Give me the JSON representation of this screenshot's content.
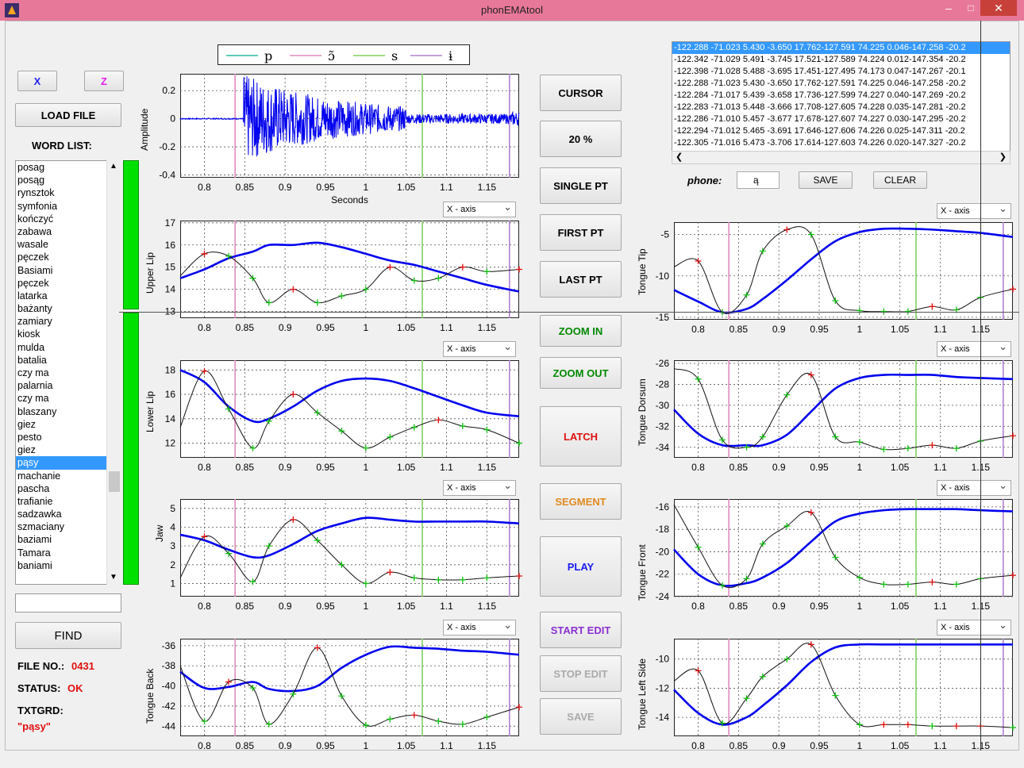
{
  "window": {
    "title": "phonEMAtool",
    "minimize": "–",
    "maximize": "□",
    "close": "✕"
  },
  "left": {
    "x_button": "X",
    "z_button": "Z",
    "load_button": "LOAD FILE",
    "word_list_label": "WORD LIST:",
    "words": [
      "posag",
      "posąg",
      "rynsztok",
      "symfonia",
      "kończyć",
      "zabawa",
      "wasale",
      "pęczek",
      "Basiami",
      "pęczek",
      "latarka",
      "bażanty",
      "zamiary",
      "kiosk",
      "mulda",
      "batalia",
      "czy ma",
      "palarnia",
      "czy ma",
      "blaszany",
      "giez",
      "pesto",
      "giez",
      "pąsy",
      "machanie",
      "pascha",
      "trafianie",
      "sadzawka",
      "szmaciany",
      "baziami",
      "Tamara",
      "baniami"
    ],
    "selected_word": "pąsy",
    "find_value": "",
    "find_button": "FIND",
    "file_no_label": "FILE NO.:",
    "file_no": "0431",
    "status_label": "STATUS:",
    "status": "OK",
    "txtgrd_label": "TXTGRD:",
    "txtgrd": "\"pąsy\""
  },
  "legend": [
    "p",
    "ɔ̃",
    "s",
    "ɨ"
  ],
  "colors": {
    "p": "#2ab8a0",
    "on": "#e08ac0",
    "s": "#80d060",
    "i": "#b080d0",
    "trace": "#0000ee",
    "accent_red": "#e01010",
    "accent_green": "#008800",
    "accent_orange": "#e08a20",
    "accent_blue": "#1a1aee",
    "accent_purple": "#8a30d0"
  },
  "center_buttons": {
    "cursor": "CURSOR",
    "pct": "20 %",
    "single": "SINGLE PT",
    "first": "FIRST PT",
    "last": "LAST PT",
    "zoom_in": "ZOOM IN",
    "zoom_out": "ZOOM OUT",
    "latch": "LATCH",
    "segment": "SEGMENT",
    "play": "PLAY",
    "start_edit": "START EDIT",
    "stop_edit": "STOP EDIT",
    "save": "SAVE"
  },
  "coord_rows": [
    "-122.288 -71.023  5.430  -3.650  17.762-127.591  74.225   0.046-147.258 -20.2",
    "-122.342 -71.029  5.491  -3.745  17.521-127.589  74.224   0.012-147.354 -20.2",
    "-122.398 -71.028  5.488  -3.695  17.451-127.495  74.173   0.047-147.267 -20.1",
    "-122.288 -71.023  5.430  -3.650  17.762-127.591  74.225   0.046-147.258 -20.2",
    "-122.284 -71.017  5.439  -3.658  17.736-127.599  74.227   0.040-147.269 -20.2",
    "-122.283 -71.013  5.448  -3.666  17.708-127.605  74.228   0.035-147.281 -20.2",
    "-122.286 -71.010  5.457  -3.677  17.678-127.607  74.227   0.030-147.295 -20.2",
    "-122.294 -71.012  5.465  -3.691  17.646-127.606  74.226   0.025-147.311 -20.2",
    "-122.305 -71.016  5.473  -3.706  17.614-127.603  74.226   0.020-147.327 -20.2"
  ],
  "phone": {
    "label": "phone:",
    "value": "ą",
    "save": "SAVE",
    "clear": "CLEAR"
  },
  "axis_dropdown": "X - axis",
  "x_ticks": [
    "0.8",
    "0.85",
    "0.9",
    "0.95",
    "1",
    "1.05",
    "1.1",
    "1.15"
  ],
  "x_tick_values": [
    0.8,
    0.85,
    0.9,
    0.95,
    1.0,
    1.05,
    1.1,
    1.15
  ],
  "x_range": [
    0.77,
    1.19
  ],
  "segments": [
    0.838,
    1.07,
    1.178
  ],
  "chart_data": [
    {
      "type": "line",
      "ylabel": "Amplitude",
      "xlabel": "Seconds",
      "ylim": [
        -0.42,
        0.32
      ],
      "yticks": [
        -0.4,
        -0.2,
        0,
        0.2
      ],
      "ytick_labels": [
        "-0.4",
        "-0.2",
        "0",
        "0.2"
      ],
      "waveform": true
    },
    {
      "type": "line",
      "ylabel": "Upper Lip",
      "ylim": [
        12.7,
        17.1
      ],
      "yticks": [
        13,
        14,
        15,
        16,
        17
      ],
      "ytick_labels": [
        "13",
        "14",
        "15",
        "16",
        "17"
      ],
      "x": [
        0.77,
        0.8,
        0.83,
        0.86,
        0.88,
        0.91,
        0.94,
        0.97,
        1.0,
        1.03,
        1.06,
        1.09,
        1.12,
        1.15,
        1.19
      ],
      "blue": [
        14.5,
        14.9,
        15.4,
        15.7,
        16.0,
        16.0,
        16.1,
        15.9,
        15.6,
        15.3,
        15.1,
        14.8,
        14.5,
        14.2,
        13.9
      ],
      "black": [
        14.6,
        15.6,
        15.5,
        14.5,
        13.4,
        14.0,
        13.4,
        13.7,
        14.0,
        15.0,
        14.4,
        14.5,
        15.0,
        14.8,
        14.9
      ]
    },
    {
      "type": "line",
      "ylabel": "Lower Lip",
      "ylim": [
        10.8,
        18.8
      ],
      "yticks": [
        12,
        14,
        16,
        18
      ],
      "ytick_labels": [
        "12",
        "14",
        "16",
        "18"
      ],
      "x": [
        0.77,
        0.8,
        0.83,
        0.86,
        0.88,
        0.91,
        0.94,
        0.97,
        1.0,
        1.03,
        1.06,
        1.09,
        1.12,
        1.15,
        1.19
      ],
      "blue": [
        18.0,
        17.0,
        15.0,
        13.8,
        14.0,
        15.0,
        16.3,
        17.1,
        17.3,
        17.1,
        16.5,
        15.8,
        15.1,
        14.5,
        14.2
      ],
      "black": [
        13.3,
        17.9,
        14.8,
        11.6,
        13.8,
        16.0,
        14.5,
        13.0,
        11.6,
        12.5,
        13.3,
        13.9,
        13.4,
        13.1,
        12.0
      ]
    },
    {
      "type": "line",
      "ylabel": "Jaw",
      "ylim": [
        0.3,
        5.5
      ],
      "yticks": [
        1,
        2,
        3,
        4,
        5
      ],
      "ytick_labels": [
        "1",
        "2",
        "3",
        "4",
        "5"
      ],
      "x": [
        0.77,
        0.8,
        0.83,
        0.86,
        0.88,
        0.91,
        0.94,
        0.97,
        1.0,
        1.03,
        1.06,
        1.09,
        1.12,
        1.15,
        1.19
      ],
      "blue": [
        3.6,
        3.3,
        2.8,
        2.4,
        2.5,
        3.1,
        3.8,
        4.2,
        4.5,
        4.4,
        4.3,
        4.3,
        4.3,
        4.3,
        4.2
      ],
      "black": [
        1.3,
        3.5,
        2.6,
        1.1,
        3.0,
        4.4,
        3.3,
        2.0,
        1.0,
        1.6,
        1.3,
        1.2,
        1.2,
        1.3,
        1.4
      ]
    },
    {
      "type": "line",
      "ylabel": "Tongue Back",
      "ylim": [
        -45,
        -35.3
      ],
      "yticks": [
        -44,
        -42,
        -40,
        -38,
        -36
      ],
      "ytick_labels": [
        "-44",
        "-42",
        "-40",
        "-38",
        "-36"
      ],
      "x": [
        0.77,
        0.8,
        0.83,
        0.86,
        0.88,
        0.91,
        0.94,
        0.97,
        1.0,
        1.03,
        1.06,
        1.09,
        1.12,
        1.15,
        1.19
      ],
      "blue": [
        -38.6,
        -40.2,
        -40.1,
        -39.6,
        -40.3,
        -40.5,
        -40.0,
        -38.2,
        -36.9,
        -36.1,
        -36.2,
        -36.3,
        -36.5,
        -36.6,
        -36.9
      ],
      "black": [
        -38.0,
        -43.5,
        -39.6,
        -40.2,
        -43.8,
        -40.8,
        -36.2,
        -41.0,
        -43.9,
        -43.3,
        -42.9,
        -43.5,
        -43.8,
        -43.1,
        -42.1
      ]
    },
    {
      "type": "line",
      "ylabel": "Tongue Tip",
      "ylim": [
        -15.3,
        -3.5
      ],
      "yticks": [
        -15,
        -10,
        -5
      ],
      "ytick_labels": [
        "-15",
        "-10",
        "-5"
      ],
      "x": [
        0.77,
        0.8,
        0.83,
        0.86,
        0.88,
        0.91,
        0.94,
        0.97,
        1.0,
        1.03,
        1.06,
        1.09,
        1.12,
        1.15,
        1.19
      ],
      "blue": [
        -11.7,
        -13.1,
        -14.4,
        -14.0,
        -12.8,
        -10.5,
        -8.0,
        -5.8,
        -4.7,
        -4.3,
        -4.3,
        -4.4,
        -4.6,
        -4.8,
        -5.3
      ],
      "black": [
        -8.9,
        -8.2,
        -14.4,
        -12.3,
        -7.0,
        -4.4,
        -5.0,
        -13.0,
        -14.2,
        -14.3,
        -14.3,
        -13.7,
        -14.1,
        -12.6,
        -11.6
      ]
    },
    {
      "type": "line",
      "ylabel": "Tongue Dorsum",
      "ylim": [
        -35,
        -25.7
      ],
      "yticks": [
        -34,
        -32,
        -30,
        -28,
        -26
      ],
      "ytick_labels": [
        "-34",
        "-32",
        "-30",
        "-28",
        "-26"
      ],
      "x": [
        0.77,
        0.8,
        0.83,
        0.86,
        0.88,
        0.91,
        0.94,
        0.97,
        1.0,
        1.03,
        1.06,
        1.09,
        1.12,
        1.15,
        1.19
      ],
      "blue": [
        -30.4,
        -32.7,
        -33.8,
        -33.8,
        -33.8,
        -32.8,
        -30.6,
        -28.4,
        -27.4,
        -27.1,
        -27.1,
        -27.1,
        -27.3,
        -27.4,
        -27.5
      ],
      "black": [
        -26.5,
        -27.5,
        -33.3,
        -34.0,
        -33.0,
        -29.0,
        -27.1,
        -33.0,
        -33.5,
        -34.2,
        -34.1,
        -33.8,
        -34.1,
        -33.4,
        -32.9
      ]
    },
    {
      "type": "line",
      "ylabel": "Tongue Front",
      "ylim": [
        -24,
        -15.3
      ],
      "yticks": [
        -24,
        -22,
        -20,
        -18,
        -16
      ],
      "ytick_labels": [
        "-24",
        "-22",
        "-20",
        "-18",
        "-16"
      ],
      "x": [
        0.77,
        0.8,
        0.83,
        0.86,
        0.88,
        0.91,
        0.94,
        0.97,
        1.0,
        1.03,
        1.06,
        1.09,
        1.12,
        1.15,
        1.19
      ],
      "blue": [
        -19.8,
        -22.0,
        -23.0,
        -22.8,
        -22.3,
        -21.0,
        -19.1,
        -17.3,
        -16.6,
        -16.3,
        -16.2,
        -16.2,
        -16.2,
        -16.3,
        -16.4
      ],
      "black": [
        -15.8,
        -19.6,
        -23.0,
        -22.4,
        -19.3,
        -17.7,
        -16.5,
        -20.5,
        -22.3,
        -22.9,
        -22.9,
        -22.7,
        -22.9,
        -22.4,
        -22.1
      ]
    },
    {
      "type": "line",
      "ylabel": "Tongue Left Side",
      "ylim": [
        -15.3,
        -8.6
      ],
      "yticks": [
        -14,
        -12,
        -10
      ],
      "ytick_labels": [
        "-14",
        "-12",
        "-10"
      ],
      "x": [
        0.77,
        0.8,
        0.83,
        0.86,
        0.88,
        0.91,
        0.94,
        0.97,
        1.0,
        1.03,
        1.06,
        1.09,
        1.12,
        1.15,
        1.19
      ],
      "blue": [
        -12.1,
        -13.7,
        -14.5,
        -14.0,
        -13.2,
        -11.8,
        -10.2,
        -9.2,
        -9.0,
        -9.0,
        -9.0,
        -9.0,
        -9.0,
        -9.0,
        -9.0
      ],
      "black": [
        -11.5,
        -10.8,
        -14.4,
        -12.7,
        -11.2,
        -10.0,
        -9.0,
        -12.5,
        -14.5,
        -14.5,
        -14.5,
        -14.6,
        -14.6,
        -14.6,
        -14.7
      ]
    }
  ]
}
